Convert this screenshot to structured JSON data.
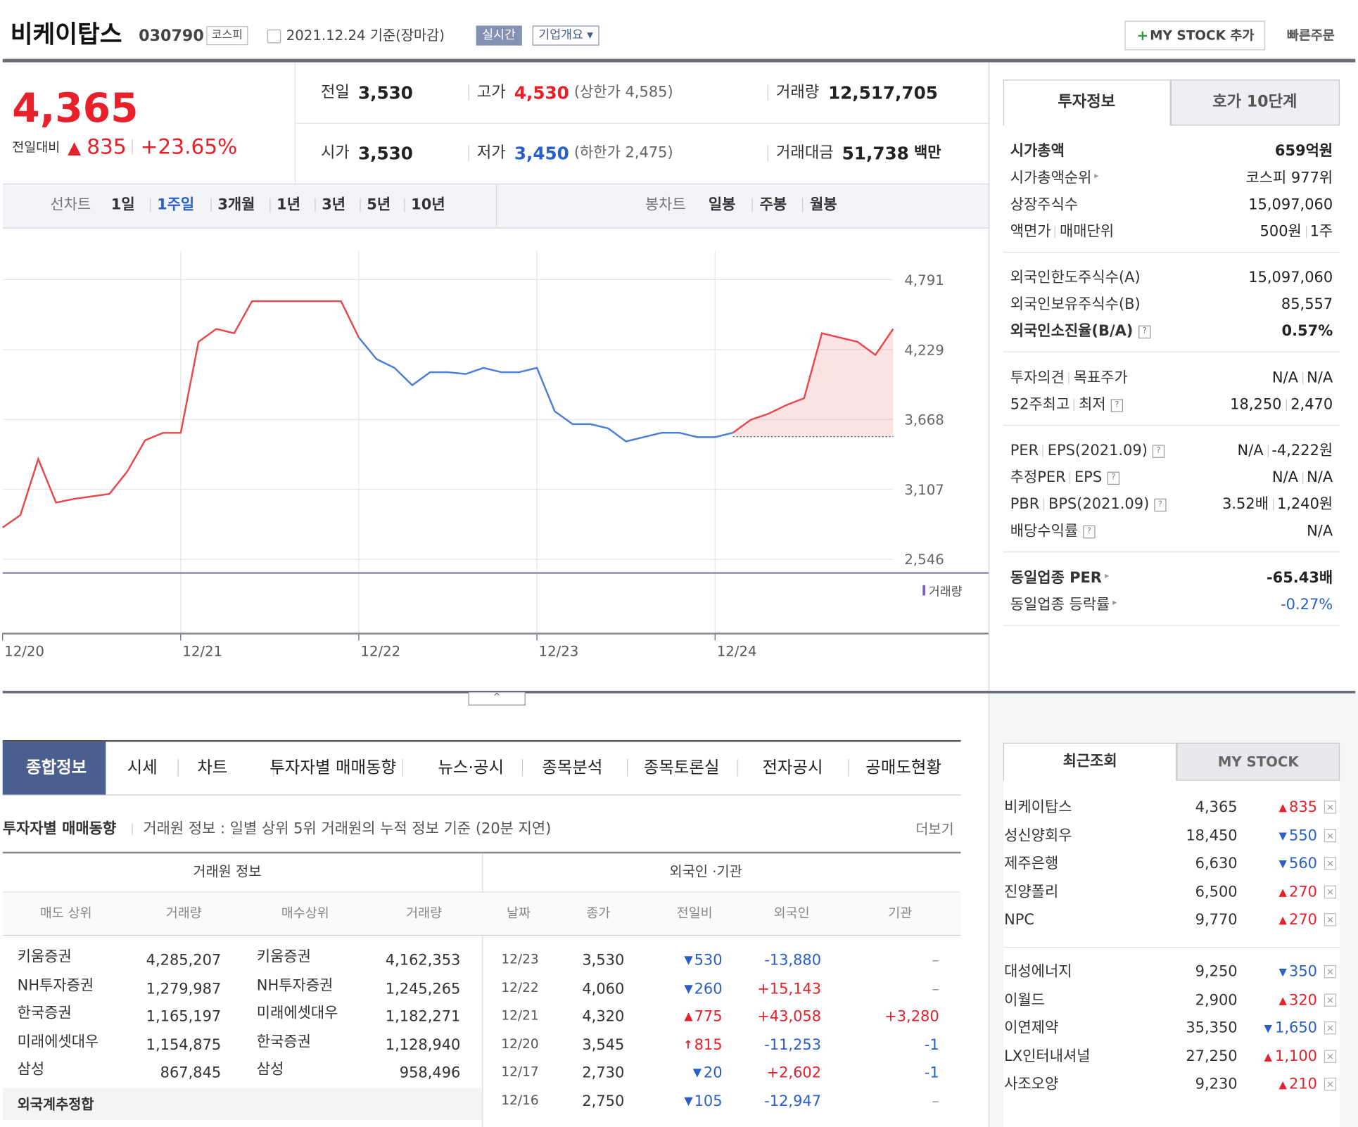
{
  "header": {
    "name": "비케이탑스",
    "code": "030790",
    "market": "코스피",
    "date": "2021.12.24 기준(장마감)",
    "realtime": "실시간",
    "company": "기업개요",
    "my_stock": "MY STOCK 추가",
    "quick_order": "빠른주문"
  },
  "quote": {
    "price": "4,365",
    "change_label": "전일대비",
    "change_arrow": "▲",
    "change": "835",
    "change_pct": "+23.65%",
    "stats": [
      {
        "label": "전일",
        "value": "3,530"
      },
      {
        "label": "고가",
        "value": "4,530",
        "note": "(상한가 4,585)",
        "color": "#e8202a"
      },
      {
        "label": "거래량",
        "value": "12,517,705"
      },
      {
        "label": "시가",
        "value": "3,530"
      },
      {
        "label": "저가",
        "value": "3,450",
        "note": "(하한가 2,475)",
        "color": "#2a5fc9"
      },
      {
        "label": "거래대금",
        "value": "51,738",
        "unit": "백만"
      }
    ]
  },
  "chart_tabs": {
    "line_label": "선차트",
    "line_periods": [
      "1일",
      "1주일",
      "3개월",
      "1년",
      "3년",
      "5년",
      "10년"
    ],
    "active": 1,
    "candle_label": "봉차트",
    "candle_periods": [
      "일봉",
      "주봉",
      "월봉"
    ]
  },
  "chart_data": {
    "type": "line",
    "xticks": [
      "12/20",
      "12/21",
      "12/22",
      "12/23",
      "12/24"
    ],
    "ylim": [
      2546,
      4791
    ],
    "yticks": [
      {
        "value": 2546,
        "label": "2,546"
      },
      {
        "value": 3107,
        "label": "3,107"
      },
      {
        "value": 3668,
        "label": "3,668"
      },
      {
        "value": 4229,
        "label": "4,229"
      },
      {
        "value": 4791,
        "label": "4,791"
      }
    ],
    "grid": true,
    "reference_line": 3530,
    "volume_label": "거래량",
    "series": [
      {
        "color": "#e8474d",
        "values": [
          2800,
          2900,
          3350,
          3000,
          3030,
          3050,
          3070,
          3250,
          3500,
          3560,
          3560,
          4291,
          4395,
          4360,
          4617,
          4617,
          4617,
          4617,
          4617,
          4617,
          4325,
          null,
          null,
          null,
          null,
          null,
          null,
          null,
          null,
          null,
          null,
          null,
          null,
          null,
          null,
          null,
          null,
          null,
          null,
          null,
          null,
          null,
          null,
          null,
          null,
          null,
          null,
          null,
          null,
          null,
          null
        ]
      },
      {
        "color": "#4a7fd6",
        "values": [
          null,
          null,
          null,
          null,
          null,
          null,
          null,
          null,
          null,
          null,
          null,
          null,
          null,
          null,
          null,
          null,
          null,
          null,
          null,
          null,
          4325,
          4152,
          4082,
          3943,
          4047,
          4047,
          4033,
          4082,
          4047,
          4047,
          4082,
          3734,
          3630,
          3630,
          3596,
          3491,
          3526,
          3561,
          3561,
          3526,
          3526,
          3561,
          null,
          null,
          null,
          null,
          null,
          null,
          null,
          null,
          null
        ]
      },
      {
        "color": "#e8474d",
        "area": true,
        "values": [
          null,
          null,
          null,
          null,
          null,
          null,
          null,
          null,
          null,
          null,
          null,
          null,
          null,
          null,
          null,
          null,
          null,
          null,
          null,
          null,
          null,
          null,
          null,
          null,
          null,
          null,
          null,
          null,
          null,
          null,
          null,
          null,
          null,
          null,
          null,
          null,
          null,
          null,
          null,
          null,
          null,
          3561,
          3665,
          3714,
          3783,
          3839,
          4360,
          4325,
          4291,
          4186,
          4395
        ]
      }
    ]
  },
  "investment": {
    "tabs": [
      "투자정보",
      "호가 10단계"
    ],
    "groups": [
      [
        {
          "label": [
            "시가총액"
          ],
          "value": [
            "659억원"
          ],
          "bold": true
        },
        {
          "label": [
            "시가총액순위"
          ],
          "value": [
            "코스피 977위"
          ],
          "arrow": true
        },
        {
          "label": [
            "상장주식수"
          ],
          "value": [
            "15,097,060"
          ]
        },
        {
          "label": [
            "액면가",
            "매매단위"
          ],
          "value": [
            "500원",
            "1주"
          ]
        }
      ],
      [
        {
          "label": [
            "외국인한도주식수(A)"
          ],
          "value": [
            "15,097,060"
          ]
        },
        {
          "label": [
            "외국인보유주식수(B)"
          ],
          "value": [
            "85,557"
          ]
        },
        {
          "label": [
            "외국인소진율(B/A)"
          ],
          "value": [
            "0.57%"
          ],
          "bold": true,
          "help": true
        }
      ],
      [
        {
          "label": [
            "투자의견",
            "목표주가"
          ],
          "value": [
            "N/A",
            "N/A"
          ]
        },
        {
          "label": [
            "52주최고",
            "최저"
          ],
          "value": [
            "18,250",
            "2,470"
          ],
          "help": true
        }
      ],
      [
        {
          "label": [
            "PER",
            "EPS(2021.09)"
          ],
          "value": [
            "N/A",
            "-4,222원"
          ],
          "help": true
        },
        {
          "label": [
            "추정PER",
            "EPS"
          ],
          "value": [
            "N/A",
            "N/A"
          ],
          "help": true
        },
        {
          "label": [
            "PBR",
            "BPS(2021.09)"
          ],
          "value": [
            "3.52배",
            "1,240원"
          ],
          "help": true
        },
        {
          "label": [
            "배당수익률"
          ],
          "value": [
            "N/A"
          ],
          "help": true
        }
      ],
      [
        {
          "label": [
            "동일업종 PER"
          ],
          "value": [
            "-65.43배"
          ],
          "bold": true,
          "arrow": true
        },
        {
          "label": [
            "동일업종 등락률"
          ],
          "value": [
            "-0.27%"
          ],
          "arrow": true,
          "color": "#2a5fc9"
        }
      ]
    ]
  },
  "tabs": [
    "종합정보",
    "시세",
    "차트",
    "투자자별 매매동향",
    "뉴스·공시",
    "종목분석",
    "종목토론실",
    "전자공시",
    "공매도현황"
  ],
  "section": {
    "title": "투자자별 매매동향",
    "desc": "거래원 정보 : 일별 상위 5위 거래원의 누적 정보 기준 (20분 지연)",
    "more": "더보기"
  },
  "broker_table": {
    "caption": "거래원 정보",
    "columns": [
      "매도 상위",
      "거래량",
      "매수상위",
      "거래량"
    ],
    "rows": [
      [
        "키움증권",
        "4,285,207",
        "키움증권",
        "4,162,353"
      ],
      [
        "NH투자증권",
        "1,279,987",
        "NH투자증권",
        "1,245,265"
      ],
      [
        "한국증권",
        "1,165,197",
        "미래에셋대우",
        "1,182,271"
      ],
      [
        "미래에셋대우",
        "1,154,875",
        "한국증권",
        "1,128,940"
      ],
      [
        "삼성",
        "867,845",
        "삼성",
        "958,496"
      ]
    ],
    "footer": "외국계추정합"
  },
  "investor_table": {
    "caption": "외국인 ·기관",
    "columns": [
      "날짜",
      "종가",
      "전일비",
      "외국인",
      "기관"
    ],
    "rows": [
      [
        "12/23",
        "3,530",
        "▼",
        "530",
        "-13,880",
        "–"
      ],
      [
        "12/22",
        "4,060",
        "▼",
        "260",
        "+15,143",
        "–"
      ],
      [
        "12/21",
        "4,320",
        "▲",
        "775",
        "+43,058",
        "+3,280"
      ],
      [
        "12/20",
        "3,545",
        "↑",
        "815",
        "-11,253",
        "-1"
      ],
      [
        "12/17",
        "2,730",
        "▼",
        "20",
        "+2,602",
        "-1"
      ],
      [
        "12/16",
        "2,750",
        "▼",
        "105",
        "-12,947",
        "–"
      ]
    ]
  },
  "recent": {
    "tabs": [
      "최근조회",
      "MY STOCK"
    ],
    "groups": [
      [
        [
          "비케이탑스",
          "4,365",
          "▲",
          "835"
        ],
        [
          "성신양회우",
          "18,450",
          "▼",
          "550"
        ],
        [
          "제주은행",
          "6,630",
          "▼",
          "560"
        ],
        [
          "진양폴리",
          "6,500",
          "▲",
          "270"
        ],
        [
          "NPC",
          "9,770",
          "▲",
          "270"
        ]
      ],
      [
        [
          "대성에너지",
          "9,250",
          "▼",
          "350"
        ],
        [
          "이월드",
          "2,900",
          "▲",
          "320"
        ],
        [
          "이연제약",
          "35,350",
          "▼",
          "1,650"
        ],
        [
          "LX인터내셔널",
          "27,250",
          "▲",
          "1,100"
        ],
        [
          "사조오양",
          "9,230",
          "▲",
          "210"
        ]
      ]
    ]
  }
}
